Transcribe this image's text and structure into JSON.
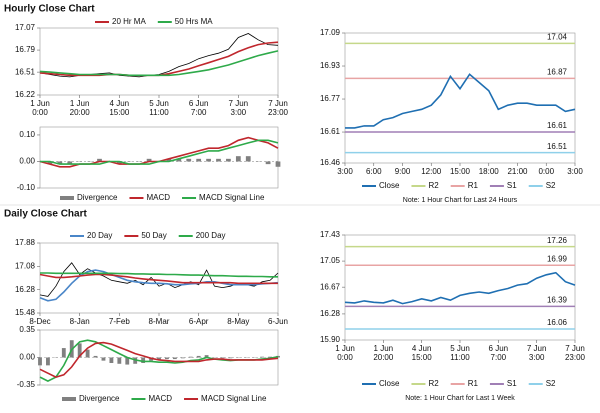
{
  "headings": [
    "Hourly Close Chart",
    "Daily Close Chart"
  ],
  "chart_data": [
    {
      "type": "line",
      "legend": "top",
      "categories": [
        "1 Jun\n0:00",
        null,
        null,
        null,
        "1 Jun\n20:00",
        null,
        null,
        null,
        "4 Jun\n15:00",
        null,
        null,
        null,
        "5 Jun\n11:00",
        null,
        null,
        null,
        "6 Jun\n7:00",
        null,
        null,
        null,
        "7 Jun\n3:00",
        null,
        null,
        null,
        "7 Jun\n23:00"
      ],
      "ylim": [
        16.22,
        17.07
      ],
      "yticks": [
        16.22,
        16.51,
        16.79,
        17.07
      ],
      "series": [
        {
          "color": "#000000",
          "values": [
            16.5,
            16.48,
            16.46,
            16.45,
            16.47,
            16.48,
            16.49,
            16.5,
            16.47,
            16.46,
            16.45,
            16.47,
            16.48,
            16.52,
            16.58,
            16.62,
            16.68,
            16.72,
            16.75,
            16.8,
            16.95,
            17.0,
            16.92,
            16.86,
            16.85
          ]
        },
        {
          "name": "20 Hr MA",
          "color": "#c0272d",
          "values": [
            16.5,
            16.49,
            16.48,
            16.47,
            16.47,
            16.47,
            16.47,
            16.48,
            16.48,
            16.47,
            16.47,
            16.47,
            16.47,
            16.49,
            16.52,
            16.55,
            16.59,
            16.63,
            16.67,
            16.71,
            16.77,
            16.82,
            16.86,
            16.88,
            16.89
          ]
        },
        {
          "name": "50 Hrs MA",
          "color": "#2eaa4a",
          "values": [
            16.52,
            16.51,
            16.5,
            16.49,
            16.48,
            16.48,
            16.48,
            16.48,
            16.48,
            16.47,
            16.47,
            16.47,
            16.47,
            16.47,
            16.48,
            16.5,
            16.52,
            16.54,
            16.57,
            16.6,
            16.64,
            16.68,
            16.72,
            16.75,
            16.78
          ]
        }
      ]
    },
    {
      "type": "line",
      "legend": "bottom",
      "categories": [
        null,
        null,
        null,
        null,
        null,
        null,
        null,
        null,
        null,
        null,
        null,
        null,
        null,
        null,
        null,
        null,
        null,
        null,
        null,
        null,
        null,
        null,
        null,
        null,
        null
      ],
      "ylim": [
        -0.1,
        0.13
      ],
      "yticks": [
        {
          "value": -0.1,
          "label": "-0.10"
        },
        {
          "value": 0,
          "label": "0.00"
        },
        {
          "value": 0.1,
          "label": "0.10"
        }
      ],
      "series": [
        {
          "name": "Divergence",
          "type": "bar",
          "color": "#808080",
          "values": [
            0,
            -0.01,
            -0.01,
            -0.01,
            0,
            0,
            0.01,
            0,
            -0.01,
            0,
            0,
            0.01,
            0,
            0.01,
            0.01,
            0.01,
            0.01,
            0.01,
            0.01,
            0.01,
            0.02,
            0.02,
            0,
            -0.01,
            -0.02
          ]
        },
        {
          "name": "MACD",
          "color": "#c0272d",
          "values": [
            0,
            -0.01,
            -0.02,
            -0.02,
            -0.01,
            -0.01,
            0,
            0,
            -0.01,
            -0.01,
            -0.01,
            0,
            0,
            0.01,
            0.02,
            0.03,
            0.04,
            0.05,
            0.05,
            0.06,
            0.08,
            0.09,
            0.08,
            0.07,
            0.05
          ]
        },
        {
          "name": "MACD Signal Line",
          "color": "#2eaa4a",
          "values": [
            0,
            0,
            -0.01,
            -0.01,
            -0.01,
            -0.01,
            -0.01,
            0,
            0,
            -0.01,
            -0.01,
            -0.01,
            0,
            0,
            0.01,
            0.02,
            0.03,
            0.04,
            0.04,
            0.05,
            0.06,
            0.07,
            0.08,
            0.08,
            0.07
          ]
        }
      ]
    },
    {
      "type": "line",
      "legend": "bottom",
      "note": "Note: 1 Hour Chart for Last 24 Hours",
      "categories": [
        "3:00",
        null,
        null,
        "6:00",
        null,
        null,
        "9:00",
        null,
        null,
        "12:00",
        null,
        null,
        "15:00",
        null,
        null,
        "18:00",
        null,
        null,
        "21:00",
        null,
        null,
        "0:00",
        null,
        null,
        "3:00"
      ],
      "ylim": [
        16.46,
        17.09
      ],
      "yticks": [
        16.46,
        16.61,
        16.77,
        16.93,
        17.09
      ],
      "series": [
        {
          "name": "Close",
          "color": "#1f6fb2",
          "values": [
            16.63,
            16.63,
            16.64,
            16.64,
            16.67,
            16.68,
            16.7,
            16.71,
            16.72,
            16.74,
            16.79,
            16.88,
            16.82,
            16.89,
            16.85,
            16.81,
            16.72,
            16.74,
            16.75,
            16.75,
            16.74,
            16.74,
            16.74,
            16.71,
            16.72
          ]
        }
      ],
      "levels": [
        {
          "name": "R2",
          "value": 17.04,
          "color": "#c5d88a"
        },
        {
          "name": "R1",
          "value": 16.87,
          "color": "#e8a4a4"
        },
        {
          "name": "S1",
          "value": 16.61,
          "color": "#a07fb5"
        },
        {
          "name": "S2",
          "value": 16.51,
          "color": "#8fd0ea"
        }
      ]
    },
    {
      "type": "line",
      "legend": "top",
      "categories": [
        "8-Dec",
        null,
        null,
        null,
        null,
        "8-Jan",
        null,
        null,
        null,
        null,
        "7-Feb",
        null,
        null,
        null,
        null,
        "8-Mar",
        null,
        null,
        null,
        null,
        "6-Apr",
        null,
        null,
        null,
        null,
        "8-May",
        null,
        null,
        null,
        null,
        "6-Jun"
      ],
      "ylim": [
        15.48,
        17.88
      ],
      "yticks": [
        15.48,
        16.28,
        17.08,
        17.88
      ],
      "series": [
        {
          "color": "#000000",
          "values": [
            16.1,
            16.05,
            16.4,
            16.9,
            17.2,
            16.8,
            17.0,
            16.85,
            16.75,
            16.6,
            16.55,
            16.5,
            16.6,
            16.45,
            16.7,
            16.4,
            16.5,
            16.35,
            16.45,
            16.55,
            16.45,
            16.95,
            16.4,
            16.35,
            16.4,
            16.5,
            16.45,
            16.4,
            16.55,
            16.6,
            16.85
          ]
        },
        {
          "name": "20 Day",
          "color": "#4a86c8",
          "values": [
            16.0,
            15.9,
            15.95,
            16.2,
            16.5,
            16.75,
            16.9,
            16.95,
            16.9,
            16.8,
            16.7,
            16.6,
            16.55,
            16.52,
            16.5,
            16.5,
            16.48,
            16.45,
            16.45,
            16.48,
            16.5,
            16.55,
            16.55,
            16.5,
            16.45,
            16.45,
            16.45,
            16.45,
            16.48,
            16.5,
            16.52
          ]
        },
        {
          "name": "50 Day",
          "color": "#c0272d",
          "values": [
            16.8,
            16.75,
            16.7,
            16.7,
            16.72,
            16.75,
            16.78,
            16.8,
            16.8,
            16.78,
            16.75,
            16.72,
            16.68,
            16.65,
            16.62,
            16.6,
            16.58,
            16.55,
            16.52,
            16.52,
            16.52,
            16.52,
            16.52,
            16.52,
            16.52,
            16.5,
            16.5,
            16.5,
            16.5,
            16.5,
            16.5
          ]
        },
        {
          "name": "200 Day",
          "color": "#2eaa4a",
          "values": [
            16.85,
            16.85,
            16.84,
            16.84,
            16.84,
            16.84,
            16.84,
            16.84,
            16.84,
            16.84,
            16.83,
            16.83,
            16.82,
            16.82,
            16.81,
            16.81,
            16.8,
            16.8,
            16.79,
            16.78,
            16.78,
            16.77,
            16.76,
            16.76,
            16.75,
            16.74,
            16.74,
            16.73,
            16.73,
            16.72,
            16.72
          ]
        }
      ]
    },
    {
      "type": "line",
      "legend": "bottom",
      "categories": [
        null,
        null,
        null,
        null,
        null,
        null,
        null,
        null,
        null,
        null,
        null,
        null,
        null,
        null,
        null,
        null,
        null,
        null,
        null,
        null,
        null,
        null,
        null,
        null,
        null,
        null,
        null,
        null,
        null,
        null,
        null
      ],
      "ylim": [
        -0.35,
        0.35
      ],
      "yticks": [
        -0.35,
        {
          "value": 0,
          "label": "0.00"
        },
        0.35
      ],
      "series": [
        {
          "name": "Divergence",
          "type": "bar",
          "color": "#808080",
          "values": [
            -0.1,
            -0.1,
            0,
            0.12,
            0.22,
            0.18,
            0.1,
            0.02,
            -0.04,
            -0.07,
            -0.08,
            -0.09,
            -0.08,
            -0.07,
            -0.04,
            -0.03,
            -0.02,
            -0.02,
            -0.01,
            0.01,
            0.02,
            0.03,
            0,
            -0.01,
            -0.01,
            0,
            0,
            0,
            0.01,
            0.01,
            0.02
          ]
        },
        {
          "name": "MACD",
          "color": "#2eaa4a",
          "values": [
            -0.25,
            -0.3,
            -0.25,
            -0.1,
            0.1,
            0.2,
            0.22,
            0.2,
            0.15,
            0.1,
            0.05,
            0,
            -0.03,
            -0.05,
            -0.05,
            -0.06,
            -0.06,
            -0.07,
            -0.06,
            -0.04,
            -0.03,
            0,
            -0.02,
            -0.03,
            -0.04,
            -0.03,
            -0.03,
            -0.03,
            -0.02,
            -0.01,
            0.01
          ]
        },
        {
          "name": "MACD Signal Line",
          "color": "#c0272d",
          "values": [
            -0.15,
            -0.2,
            -0.25,
            -0.22,
            -0.12,
            0.02,
            0.12,
            0.18,
            0.19,
            0.17,
            0.13,
            0.09,
            0.05,
            0.02,
            -0.01,
            -0.03,
            -0.04,
            -0.05,
            -0.05,
            -0.05,
            -0.05,
            -0.03,
            -0.02,
            -0.02,
            -0.03,
            -0.03,
            -0.03,
            -0.03,
            -0.03,
            -0.02,
            -0.01
          ]
        }
      ]
    },
    {
      "type": "line",
      "legend": "bottom",
      "note": "Note: 1 Hour Chart for Last 1 Week",
      "categories": [
        "1 Jun\n0:00",
        null,
        null,
        null,
        "1 Jun\n20:00",
        null,
        null,
        null,
        "4 Jun\n15:00",
        null,
        null,
        null,
        "5 Jun\n11:00",
        null,
        null,
        null,
        "6 Jun\n7:00",
        null,
        null,
        null,
        "7 Jun\n3:00",
        null,
        null,
        null,
        "7 Jun\n23:00"
      ],
      "ylim": [
        15.9,
        17.43
      ],
      "yticks": [
        {
          "value": 15.9,
          "label": "15.90"
        },
        16.28,
        16.67,
        17.05,
        17.43
      ],
      "series": [
        {
          "name": "Close",
          "color": "#1f6fb2",
          "values": [
            16.45,
            16.44,
            16.47,
            16.45,
            16.44,
            16.48,
            16.43,
            16.46,
            16.5,
            16.47,
            16.52,
            16.48,
            16.55,
            16.58,
            16.6,
            16.58,
            16.62,
            16.65,
            16.7,
            16.72,
            16.8,
            16.85,
            16.88,
            16.75,
            16.7
          ]
        }
      ],
      "levels": [
        {
          "name": "R2",
          "value": 17.26,
          "color": "#c5d88a"
        },
        {
          "name": "R1",
          "value": 16.99,
          "color": "#e8a4a4"
        },
        {
          "name": "S1",
          "value": 16.39,
          "color": "#a07fb5"
        },
        {
          "name": "S2",
          "value": 16.06,
          "color": "#8fd0ea"
        }
      ]
    }
  ]
}
